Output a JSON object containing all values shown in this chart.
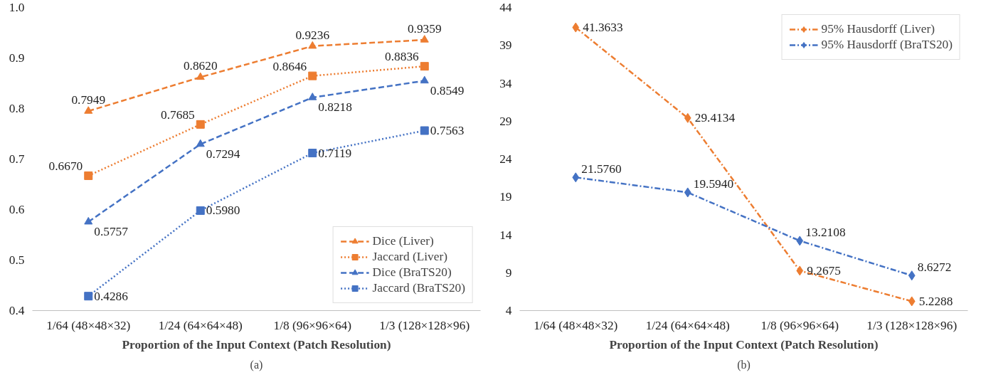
{
  "chart_data": [
    {
      "type": "line",
      "categories": [
        "1/64 (48×48×32)",
        "1/24 (64×64×48)",
        "1/8 (96×96×64)",
        "1/3 (128×128×96)"
      ],
      "xlabel": "Proportion of the Input Context (Patch Resolution)",
      "annotations": [
        "(a)"
      ],
      "ylim": [
        0.4,
        1.0
      ],
      "yticks": [
        0.4,
        0.5,
        0.6,
        0.7,
        0.8,
        0.9,
        {
          "value": 1.0,
          "label": "1.0"
        }
      ],
      "grid": false,
      "legend": "bottom right",
      "series": [
        {
          "name": "Dice (Liver)",
          "color": "#ed7d31",
          "marker": "triangle",
          "line_style": "dashed",
          "values": [
            0.7949,
            0.862,
            0.9236,
            0.9359
          ],
          "value_labels": [
            "0.7949",
            "0.8620",
            "0.9236",
            "0.9359"
          ]
        },
        {
          "name": "Jaccard (Liver)",
          "color": "#ed7d31",
          "marker": "square",
          "line_style": "dotted",
          "values": [
            0.667,
            0.7685,
            0.8646,
            0.8836
          ],
          "value_labels": [
            "0.6670",
            "0.7685",
            "0.8646",
            "0.8836"
          ]
        },
        {
          "name": "Dice (BraTS20)",
          "color": "#4472c4",
          "marker": "triangle",
          "line_style": "dashed",
          "values": [
            0.5757,
            0.7294,
            0.8218,
            0.8549
          ],
          "value_labels": [
            "0.5757",
            "0.7294",
            "0.8218",
            "0.8549"
          ]
        },
        {
          "name": "Jaccard (BraTS20)",
          "color": "#4472c4",
          "marker": "square",
          "line_style": "dotted",
          "values": [
            0.4286,
            0.598,
            0.7119,
            0.7563
          ],
          "value_labels": [
            "0.4286",
            "0.5980",
            "0.7119",
            "0.7563"
          ]
        }
      ]
    },
    {
      "type": "line",
      "categories": [
        "1/64 (48×48×32)",
        "1/24 (64×64×48)",
        "1/8 (96×96×64)",
        "1/3 (128×128×96)"
      ],
      "xlabel": "Proportion of the Input Context (Patch Resolution)",
      "annotations": [
        "(b)"
      ],
      "ylim": [
        4,
        44
      ],
      "yticks": [
        4,
        9,
        14,
        19,
        24,
        29,
        34,
        39,
        44
      ],
      "grid": false,
      "legend": "top right",
      "series": [
        {
          "name": "95% Hausdorff (Liver)",
          "color": "#ed7d31",
          "marker": "diamond",
          "line_style": "dashdot",
          "values": [
            41.3633,
            29.4134,
            9.2675,
            5.2288
          ],
          "value_labels": [
            "41.3633",
            "29.4134",
            "9.2675",
            "5.2288"
          ]
        },
        {
          "name": "95% Hausdorff (BraTS20)",
          "color": "#4472c4",
          "marker": "diamond",
          "line_style": "dashdot",
          "values": [
            21.576,
            19.594,
            13.2108,
            8.6272
          ],
          "value_labels": [
            "21.5760",
            "19.5940",
            "13.2108",
            "8.6272"
          ]
        }
      ]
    }
  ]
}
